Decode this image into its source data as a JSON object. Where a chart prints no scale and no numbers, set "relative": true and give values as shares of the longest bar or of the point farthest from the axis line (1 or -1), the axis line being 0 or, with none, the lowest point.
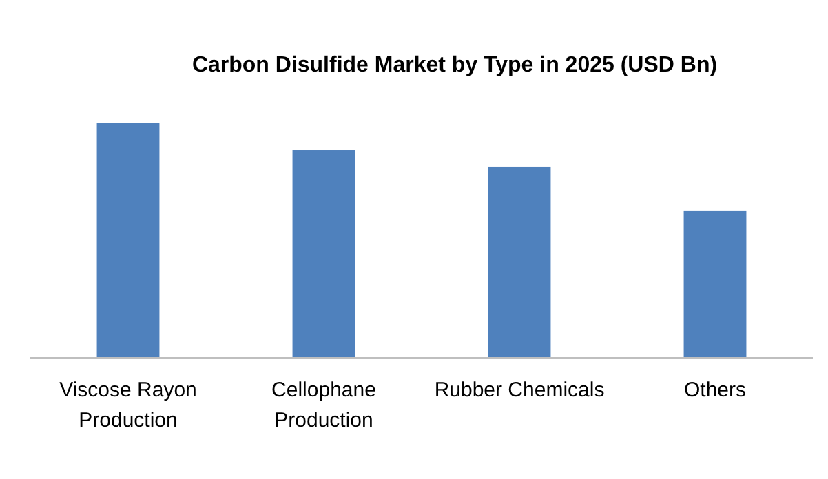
{
  "chart_data": {
    "type": "bar",
    "title": "Carbon Disulfide Market by Type in 2025 (USD Bn)",
    "categories": [
      "Viscose Rayon Production",
      "Cellophane Production",
      "Rubber Chemicals",
      "Others"
    ],
    "values": [
      1,
      0.883,
      0.813,
      0.626
    ],
    "color": "#4f81bd",
    "relative": true
  }
}
